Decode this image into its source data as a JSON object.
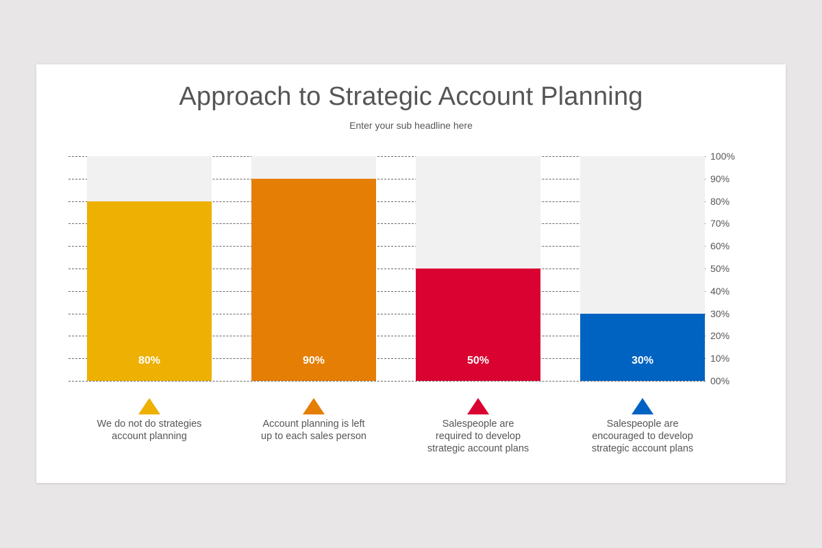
{
  "title": "Approach to Strategic Account Planning",
  "subtitle": "Enter your sub headline here",
  "y_axis": [
    "100%",
    "90%",
    "80%",
    "70%",
    "60%",
    "50%",
    "40%",
    "30%",
    "20%",
    "10%",
    "00%"
  ],
  "bars": [
    {
      "value_label": "80%",
      "value": 80,
      "color": "#edb003",
      "category": "We do not do strategies account planning",
      "line1": "We do not do strategies",
      "line2": "account planning",
      "line3": ""
    },
    {
      "value_label": "90%",
      "value": 90,
      "color": "#e57e04",
      "category": "Account planning is left up to each sales person",
      "line1": "Account planning is left",
      "line2": "up to each sales person",
      "line3": ""
    },
    {
      "value_label": "50%",
      "value": 50,
      "color": "#d90231",
      "category": "Salespeople are required to develop strategic account plans",
      "line1": "Salespeople are",
      "line2": "required to develop",
      "line3": "strategic account plans"
    },
    {
      "value_label": "30%",
      "value": 30,
      "color": "#0063c1",
      "category": "Salespeople are encouraged to develop strategic account plans",
      "line1": "Salespeople are",
      "line2": "encouraged to develop",
      "line3": "strategic account plans"
    }
  ],
  "chart_data": {
    "type": "bar",
    "title": "Approach to Strategic Account Planning",
    "subtitle": "Enter your sub headline here",
    "categories": [
      "We do not do strategies account planning",
      "Account planning is left up to each sales person",
      "Salespeople are required to develop strategic account plans",
      "Salespeople are encouraged to develop strategic account plans"
    ],
    "values": [
      80,
      90,
      50,
      30
    ],
    "data_labels": [
      "80%",
      "90%",
      "50%",
      "30%"
    ],
    "colors": [
      "#edb003",
      "#e57e04",
      "#d90231",
      "#0063c1"
    ],
    "xlabel": "",
    "ylabel": "",
    "ylim": [
      0,
      100
    ],
    "y_ticks": [
      "00%",
      "10%",
      "20%",
      "30%",
      "40%",
      "50%",
      "60%",
      "70%",
      "80%",
      "90%",
      "100%"
    ],
    "y_axis_position": "right",
    "grid": "horizontal dashed",
    "background_bar": "100% track in light gray"
  }
}
